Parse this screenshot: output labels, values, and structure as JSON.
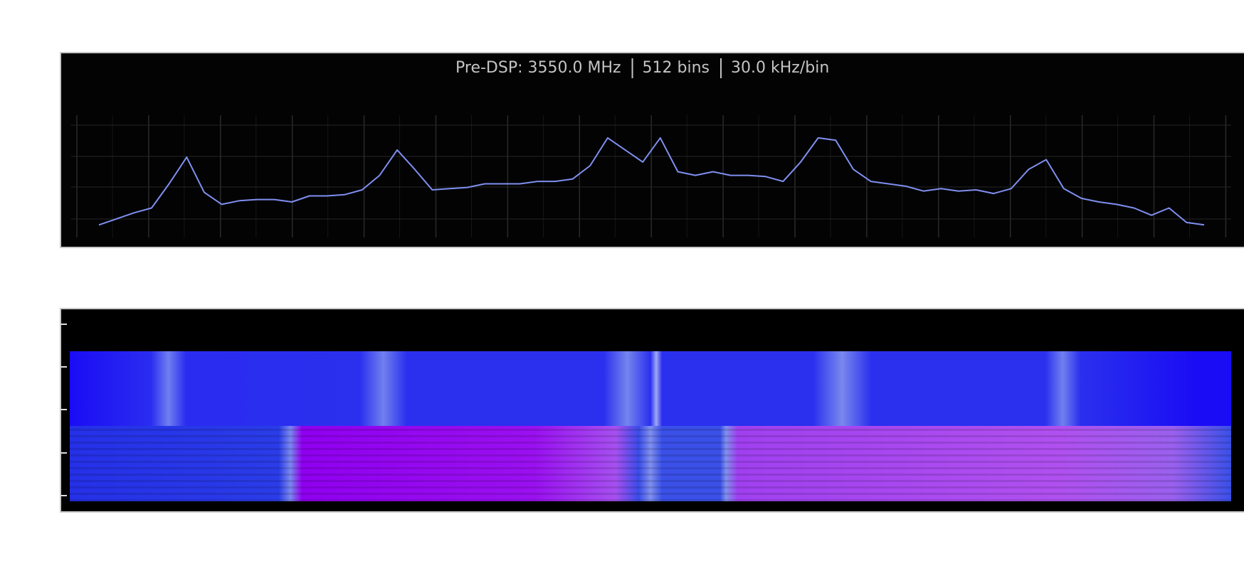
{
  "chart_data": {
    "type": "line",
    "title_parts": [
      "Pre-DSP: 3550.0 MHz",
      "512 bins",
      "30.0 kHz/bin"
    ],
    "color": "#7f8ff0",
    "ylim": [
      0,
      100
    ],
    "values": [
      11,
      16,
      21,
      25,
      45,
      67,
      38,
      28,
      31,
      32,
      32,
      30,
      35,
      35,
      36,
      40,
      52,
      73,
      57,
      40,
      41,
      42,
      45,
      45,
      45,
      47,
      47,
      49,
      60,
      83,
      73,
      63,
      83,
      55,
      52,
      55,
      52,
      52,
      51,
      47,
      63,
      83,
      81,
      57,
      47,
      45,
      43,
      39,
      41,
      39,
      40,
      37,
      41,
      57,
      65,
      41,
      33,
      30,
      28,
      25,
      19,
      25,
      13,
      11
    ]
  }
}
